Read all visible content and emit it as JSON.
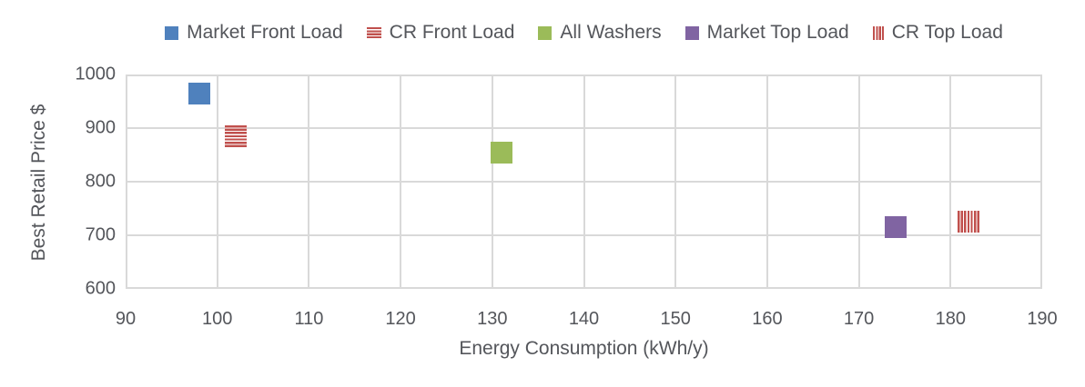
{
  "chart_data": {
    "type": "scatter",
    "title": "",
    "xlabel": "Energy Consumption (kWh/y)",
    "ylabel": "Best Retail Price $",
    "xlim": [
      90,
      190
    ],
    "ylim": [
      600,
      1000
    ],
    "xticks": [
      90,
      100,
      110,
      120,
      130,
      140,
      150,
      160,
      170,
      180,
      190
    ],
    "yticks": [
      600,
      700,
      800,
      900,
      1000
    ],
    "grid": true,
    "legend_position": "top",
    "gridline_color": "#d9d9d9",
    "text_color": "#54565b",
    "series": [
      {
        "name": "Market Front Load",
        "marker": "solid",
        "color": "#4f81bd",
        "points": [
          {
            "x": 98,
            "y": 965
          }
        ]
      },
      {
        "name": "CR Front Load",
        "marker": "hstripes",
        "color": "#c0504d",
        "points": [
          {
            "x": 102,
            "y": 885
          }
        ]
      },
      {
        "name": "All Washers",
        "marker": "solid",
        "color": "#9bbb59",
        "points": [
          {
            "x": 131,
            "y": 855
          }
        ]
      },
      {
        "name": "Market Top Load",
        "marker": "solid",
        "color": "#8064a2",
        "points": [
          {
            "x": 174,
            "y": 715
          }
        ]
      },
      {
        "name": "CR Top Load",
        "marker": "vstripes",
        "color": "#c0504d",
        "points": [
          {
            "x": 182,
            "y": 725
          }
        ]
      }
    ]
  }
}
